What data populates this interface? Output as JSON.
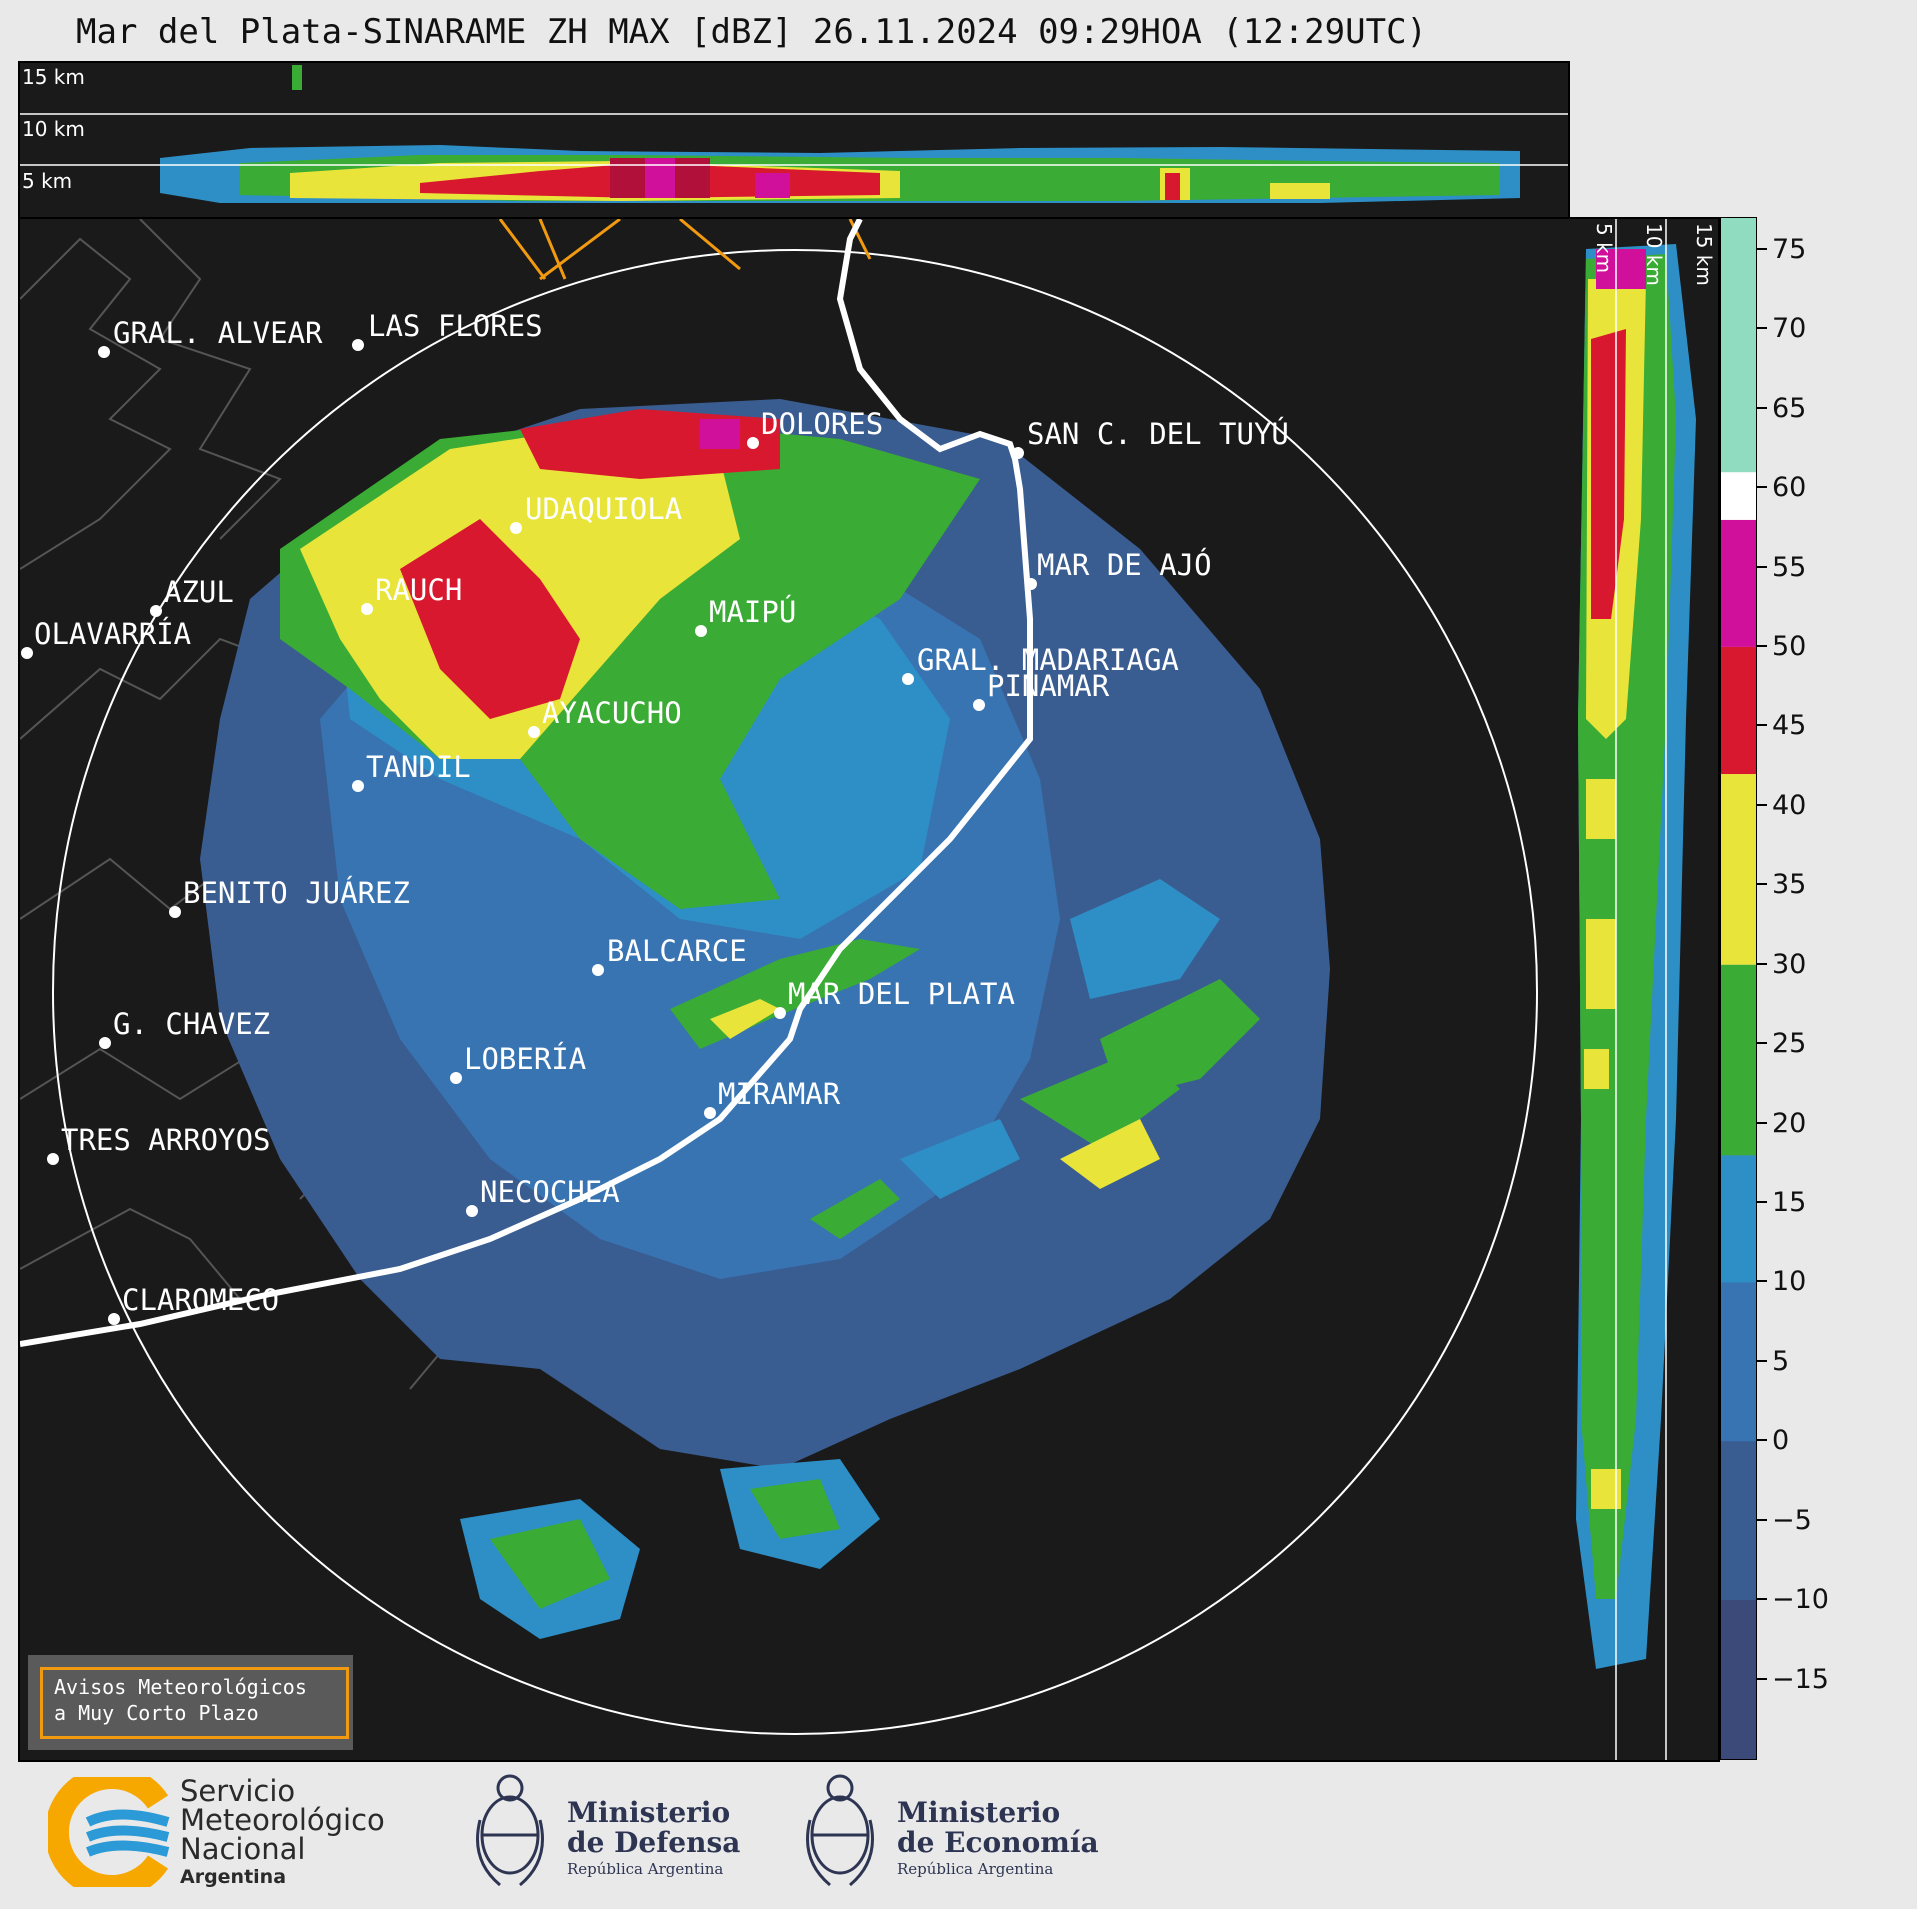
{
  "title": "Mar del Plata-SINARAME ZH MAX [dBZ] 26.11.2024 09:29HOA (12:29UTC)",
  "top_section": {
    "altitude_labels": [
      "15 km",
      "10 km",
      "5 km"
    ]
  },
  "side_section": {
    "altitude_labels": [
      "5 km",
      "10 km",
      "15 km"
    ]
  },
  "colorbar": {
    "unit": "dBZ",
    "tick_labels": [
      "75",
      "70",
      "65",
      "60",
      "55",
      "50",
      "45",
      "40",
      "35",
      "30",
      "25",
      "20",
      "15",
      "10",
      "5",
      "0",
      "−5",
      "−10",
      "−15"
    ],
    "range": [
      -20,
      77
    ],
    "bands": [
      {
        "from": -20,
        "to": 18,
        "color": "#3b4a78"
      },
      {
        "from": -10,
        "to": 18,
        "color": "#3a5d91"
      },
      {
        "from": 0,
        "to": 18,
        "color": "#3874b2"
      },
      {
        "from": 10,
        "to": 18,
        "color": "#2e8fc7"
      },
      {
        "from": 18,
        "to": 30,
        "color": "#3aab34"
      },
      {
        "from": 30,
        "to": 42,
        "color": "#e9e43a"
      },
      {
        "from": 42,
        "to": 50,
        "color": "#d8182e"
      },
      {
        "from": 50,
        "to": 58,
        "color": "#d0109b"
      },
      {
        "from": 58,
        "to": 61,
        "color": "#ffffff"
      },
      {
        "from": 61,
        "to": 77,
        "color": "#8fdcc0"
      }
    ]
  },
  "cities": [
    {
      "name": "GRAL. ALVEAR"
    },
    {
      "name": "LAS FLORES"
    },
    {
      "name": "DOLORES"
    },
    {
      "name": "SAN C. DEL TUYÚ"
    },
    {
      "name": "UDAQUIOLA"
    },
    {
      "name": "AZUL"
    },
    {
      "name": "OLAVARRÍA"
    },
    {
      "name": "RAUCH"
    },
    {
      "name": "MAR DE AJÓ"
    },
    {
      "name": "MAIPÚ"
    },
    {
      "name": "GRAL. MADARIAGA"
    },
    {
      "name": "PINAMAR"
    },
    {
      "name": "AYACUCHO"
    },
    {
      "name": "TANDIL"
    },
    {
      "name": "BENITO JUÁREZ"
    },
    {
      "name": "BALCARCE"
    },
    {
      "name": "MAR DEL PLATA"
    },
    {
      "name": "G. CHAVEZ"
    },
    {
      "name": "LOBERÍA"
    },
    {
      "name": "MIRAMAR"
    },
    {
      "name": "TRES ARROYOS"
    },
    {
      "name": "NECOCHEA"
    },
    {
      "name": "CLAROMECO"
    }
  ],
  "aviso": {
    "line1": "Avisos Meteorológicos",
    "line2": "a Muy Corto Plazo"
  },
  "footer": {
    "smn": {
      "line1": "Servicio",
      "line2": "Meteorológico",
      "line3": "Nacional",
      "line4": "Argentina"
    },
    "defensa": {
      "line1": "Ministerio",
      "line2": "de Defensa",
      "line3": "República Argentina"
    },
    "economia": {
      "line1": "Ministerio",
      "line2": "de Economía",
      "line3": "República Argentina"
    }
  },
  "colors": {
    "smn_orange": "#f6a800",
    "smn_blue": "#2b9ad6",
    "accent_orange": "#f29a0f",
    "ministry_navy": "#2d3552"
  }
}
